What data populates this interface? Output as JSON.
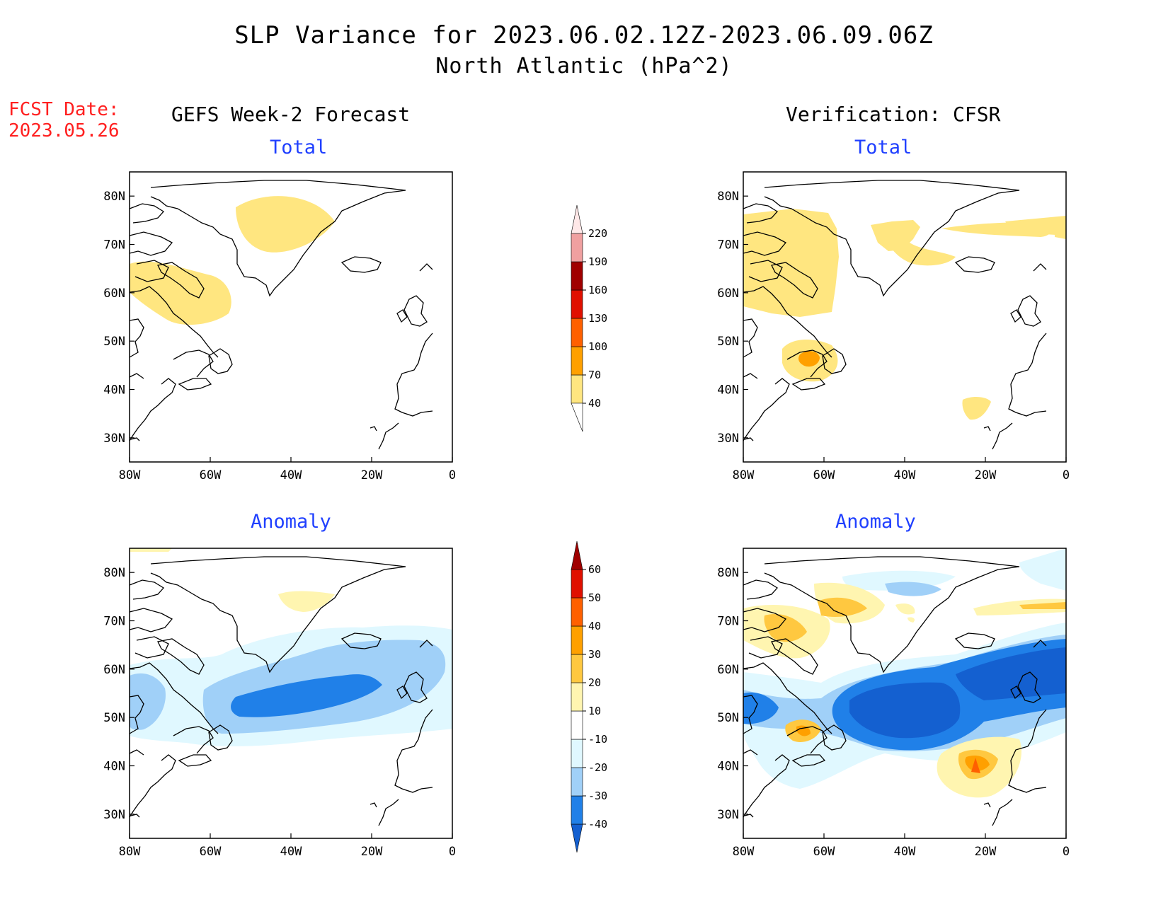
{
  "title": {
    "line1": "SLP Variance for 2023.06.02.12Z-2023.06.09.06Z",
    "line2": "North Atlantic (hPa^2)"
  },
  "fcst_date": {
    "label": "FCST Date:",
    "value": "2023.05.26"
  },
  "columns": {
    "left": "GEFS Week-2 Forecast",
    "right": "Verification: CFSR"
  },
  "panel_titles": {
    "total": "Total",
    "anomaly": "Anomaly"
  },
  "axes": {
    "lat_labels": [
      "80N",
      "70N",
      "60N",
      "50N",
      "40N",
      "30N"
    ],
    "lon_labels": [
      "80W",
      "60W",
      "40W",
      "20W",
      "0"
    ]
  },
  "colorbars": {
    "total": {
      "levels": [
        "40",
        "70",
        "100",
        "130",
        "160",
        "190",
        "220"
      ],
      "colors": [
        "#ffe680",
        "#ffa000",
        "#ff6000",
        "#e01000",
        "#a00000",
        "#f0a0a0",
        "#ffe8e8"
      ]
    },
    "anomaly": {
      "levels": [
        "-40",
        "-30",
        "-20",
        "-10",
        "10",
        "20",
        "30",
        "40",
        "50",
        "60"
      ],
      "colors": [
        "#1460d0",
        "#2080e8",
        "#a0d0f8",
        "#e0f8ff",
        "#ffffff",
        "#fff5b0",
        "#ffc840",
        "#ffa000",
        "#ff6000",
        "#e01000",
        "#a00000"
      ]
    }
  },
  "chart_data": [
    {
      "type": "map",
      "panel": "GEFS Week-2 Forecast - Total",
      "units": "hPa^2",
      "lon_range": [
        "80W",
        "0"
      ],
      "lat_range": [
        "25N",
        "85N"
      ]
    },
    {
      "type": "map",
      "panel": "Verification: CFSR - Total",
      "units": "hPa^2",
      "lon_range": [
        "80W",
        "0"
      ],
      "lat_range": [
        "25N",
        "85N"
      ]
    },
    {
      "type": "map",
      "panel": "GEFS Week-2 Forecast - Anomaly",
      "units": "hPa^2",
      "lon_range": [
        "80W",
        "0"
      ],
      "lat_range": [
        "25N",
        "85N"
      ]
    },
    {
      "type": "map",
      "panel": "Verification: CFSR - Anomaly",
      "units": "hPa^2",
      "lon_range": [
        "80W",
        "0"
      ],
      "lat_range": [
        "25N",
        "85N"
      ]
    }
  ]
}
